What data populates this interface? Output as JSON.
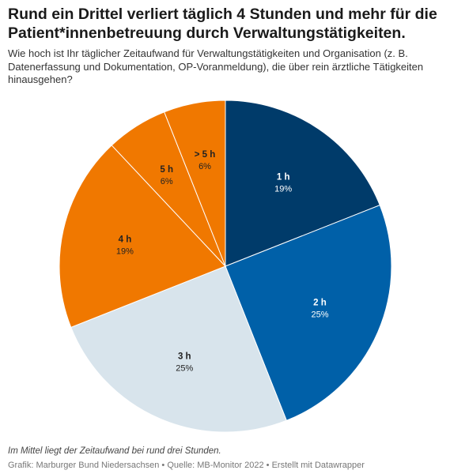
{
  "header": {
    "title": "Rund ein Drittel verliert täglich 4 Stunden und mehr für die Patient*innenbetreuung durch Verwaltungstätigkeiten.",
    "subtitle": "Wie hoch ist Ihr täglicher Zeitaufwand für Verwaltungstätigkeiten und Organisation (z. B. Datenerfassung und Dokumentation, OP-Voranmeldung), die über rein ärztliche Tätigkeiten hinausgehen?"
  },
  "footer": {
    "note": "Im Mittel liegt der Zeitaufwand bei rund drei Stunden.",
    "source": "Grafik: Marburger Bund Niedersachsen • Quelle: MB-Monitor 2022 • Erstellt mit Datawrapper"
  },
  "chart_data": {
    "type": "pie",
    "start_angle": "12 o'clock",
    "direction": "clockwise",
    "slices": [
      {
        "label": "1 h",
        "value": 19,
        "value_label": "19%",
        "color": "#003b6a",
        "text_color": "#ffffff"
      },
      {
        "label": "2 h",
        "value": 25,
        "value_label": "25%",
        "color": "#0060a8",
        "text_color": "#ffffff"
      },
      {
        "label": "3 h",
        "value": 25,
        "value_label": "25%",
        "color": "#d8e4ec",
        "text_color": "#222222"
      },
      {
        "label": "4 h",
        "value": 19,
        "value_label": "19%",
        "color": "#f07800",
        "text_color": "#222222"
      },
      {
        "label": "5 h",
        "value": 6,
        "value_label": "6%",
        "color": "#f07800",
        "text_color": "#222222"
      },
      {
        "label": "> 5 h",
        "value": 6,
        "value_label": "6%",
        "color": "#f07800",
        "text_color": "#222222"
      }
    ]
  }
}
